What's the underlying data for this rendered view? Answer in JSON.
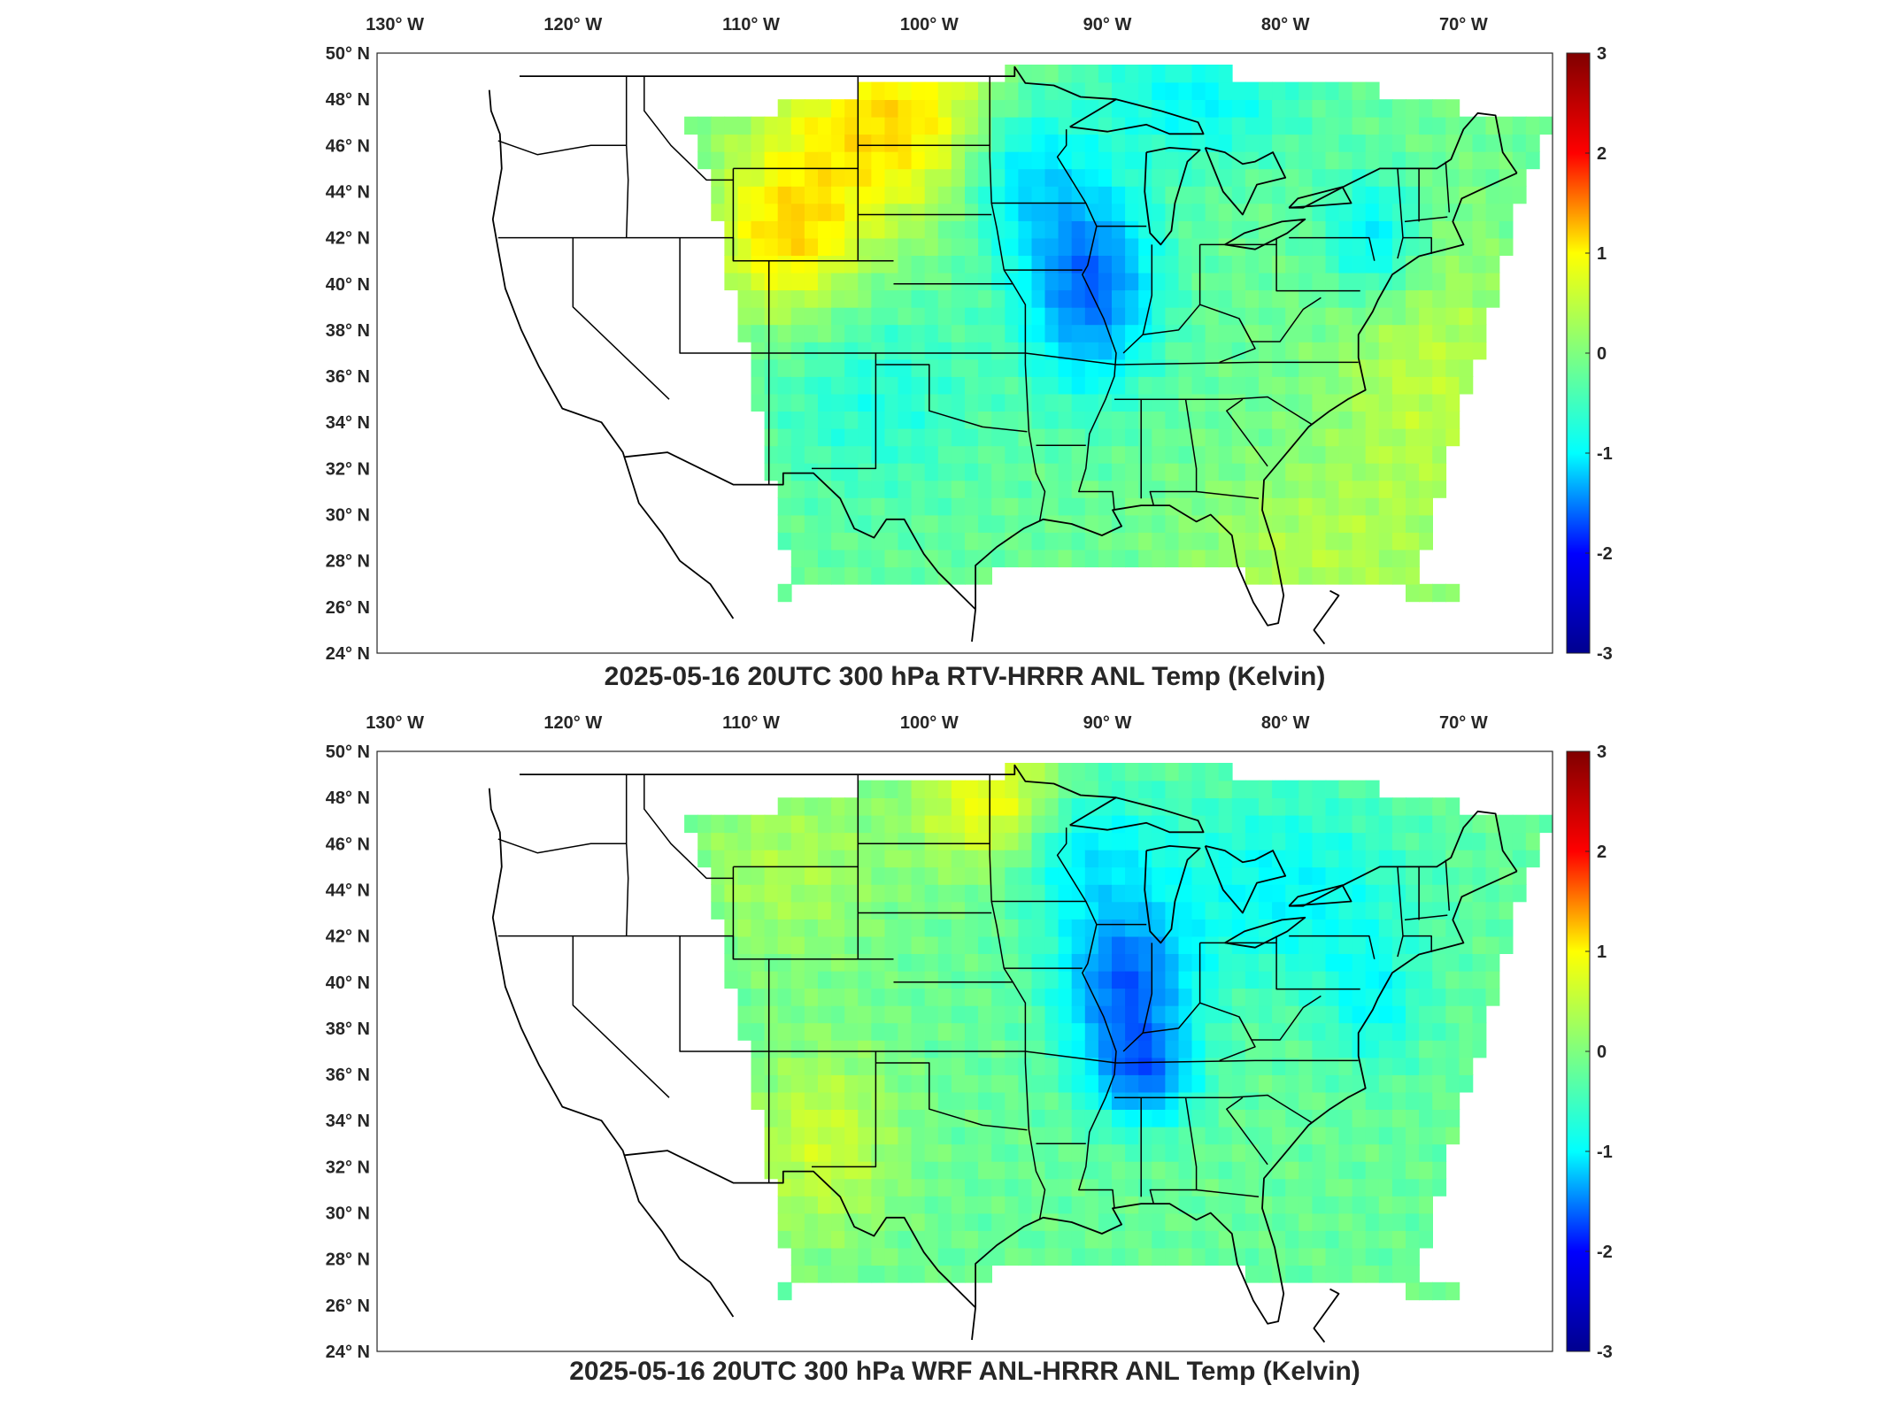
{
  "figure": {
    "panels": [
      {
        "title": "2025-05-16 20UTC 300 hPa RTV-HRRR ANL Temp (Kelvin)",
        "variable": "RTV-HRRR ANL"
      },
      {
        "title": "2025-05-16 20UTC 300 hPa WRF ANL-HRRR ANL Temp (Kelvin)",
        "variable": "WRF ANL-HRRR ANL"
      }
    ],
    "lon_ticks": [
      "130",
      "120",
      "110",
      "100",
      "90",
      "80",
      "70"
    ],
    "lon_suffix": "W",
    "lat_ticks": [
      "50",
      "48",
      "46",
      "44",
      "42",
      "40",
      "38",
      "36",
      "34",
      "32",
      "30",
      "28",
      "26",
      "24"
    ],
    "lat_suffix": "N",
    "degree_symbol": "°",
    "colorbar": {
      "ticks": [
        "3",
        "2",
        "1",
        "0",
        "-1",
        "-2",
        "-3"
      ],
      "range": [
        -3,
        3
      ],
      "colormap": "jet",
      "colors": [
        "#00008f",
        "#0000ff",
        "#00ffff",
        "#7fff7f",
        "#ffff00",
        "#ff0000",
        "#800000"
      ]
    },
    "map": {
      "extent_lon": [
        -131,
        -65
      ],
      "extent_lat": [
        24,
        50
      ],
      "background": "#ffffff",
      "line_color": "#000000"
    }
  }
}
